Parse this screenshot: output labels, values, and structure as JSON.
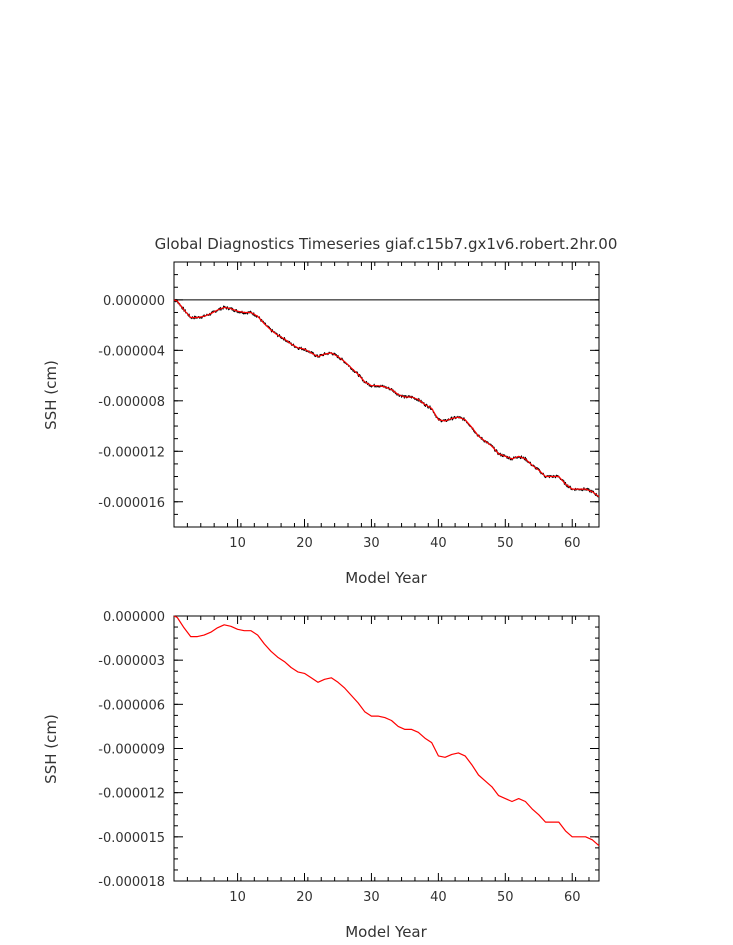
{
  "title": "Global Diagnostics Timeseries giaf.c15b7.gx1v6.robert.2hr.00",
  "colors": {
    "raw": "#000000",
    "smooth": "#ff0000",
    "axis": "#000000",
    "text": "#333333"
  },
  "chart_data": [
    {
      "type": "line",
      "xlabel": "Model Year",
      "ylabel": "SSH (cm)",
      "xlim": [
        0.5,
        64
      ],
      "ylim": [
        -1.8e-05,
        3e-06
      ],
      "x_ticks": [
        10,
        20,
        30,
        40,
        50,
        60
      ],
      "x_tick_labels": [
        "10",
        "20",
        "30",
        "40",
        "50",
        "60"
      ],
      "y_ticks": [
        0.0,
        -4e-06,
        -8e-06,
        -1.2e-05,
        -1.6e-05
      ],
      "y_tick_labels": [
        "0.000000",
        "-0.000004",
        "-0.000008",
        "-0.000012",
        "-0.000016"
      ],
      "reference_line_y": 0.0,
      "grid": false,
      "series": [
        {
          "color": "#000000",
          "noisy": true,
          "x": [
            0.5,
            1,
            2,
            3,
            4,
            5,
            6,
            7,
            8,
            9,
            10,
            11,
            12,
            13,
            14,
            15,
            16,
            17,
            18,
            19,
            20,
            21,
            22,
            23,
            24,
            25,
            26,
            27,
            28,
            29,
            30,
            31,
            32,
            33,
            34,
            35,
            36,
            37,
            38,
            39,
            40,
            41,
            42,
            43,
            44,
            45,
            46,
            47,
            48,
            49,
            50,
            51,
            52,
            53,
            54,
            55,
            56,
            57,
            58,
            59,
            60,
            61,
            62,
            63,
            64
          ],
          "y": [
            0.0,
            -1e-07,
            -8e-07,
            -1.4e-06,
            -1.4e-06,
            -1.3e-06,
            -1.1e-06,
            -8e-07,
            -6e-07,
            -7e-07,
            -9e-07,
            -1e-06,
            -1e-06,
            -1.3e-06,
            -1.9e-06,
            -2.4e-06,
            -2.8e-06,
            -3.1e-06,
            -3.5e-06,
            -3.8e-06,
            -3.9e-06,
            -4.2e-06,
            -4.5e-06,
            -4.3e-06,
            -4.2e-06,
            -4.5e-06,
            -4.9e-06,
            -5.4e-06,
            -5.9e-06,
            -6.5e-06,
            -6.8e-06,
            -6.8e-06,
            -6.9e-06,
            -7.1e-06,
            -7.5e-06,
            -7.7e-06,
            -7.7e-06,
            -7.9e-06,
            -8.3e-06,
            -8.6e-06,
            -9.5e-06,
            -9.6e-06,
            -9.4e-06,
            -9.3e-06,
            -9.5e-06,
            -1.01e-05,
            -1.08e-05,
            -1.12e-05,
            -1.16e-05,
            -1.22e-05,
            -1.24e-05,
            -1.26e-05,
            -1.24e-05,
            -1.26e-05,
            -1.31e-05,
            -1.35e-05,
            -1.4e-05,
            -1.4e-05,
            -1.4e-05,
            -1.46e-05,
            -1.5e-05,
            -1.5e-05,
            -1.5e-05,
            -1.52e-05,
            -1.56e-05
          ]
        },
        {
          "color": "#ff0000",
          "noisy": false,
          "x": [
            0.5,
            1,
            2,
            3,
            4,
            5,
            6,
            7,
            8,
            9,
            10,
            11,
            12,
            13,
            14,
            15,
            16,
            17,
            18,
            19,
            20,
            21,
            22,
            23,
            24,
            25,
            26,
            27,
            28,
            29,
            30,
            31,
            32,
            33,
            34,
            35,
            36,
            37,
            38,
            39,
            40,
            41,
            42,
            43,
            44,
            45,
            46,
            47,
            48,
            49,
            50,
            51,
            52,
            53,
            54,
            55,
            56,
            57,
            58,
            59,
            60,
            61,
            62,
            63,
            64
          ],
          "y": [
            0.0,
            -1e-07,
            -8e-07,
            -1.4e-06,
            -1.4e-06,
            -1.3e-06,
            -1.1e-06,
            -8e-07,
            -6e-07,
            -7e-07,
            -9e-07,
            -1e-06,
            -1e-06,
            -1.3e-06,
            -1.9e-06,
            -2.4e-06,
            -2.8e-06,
            -3.1e-06,
            -3.5e-06,
            -3.8e-06,
            -3.9e-06,
            -4.2e-06,
            -4.5e-06,
            -4.3e-06,
            -4.2e-06,
            -4.5e-06,
            -4.9e-06,
            -5.4e-06,
            -5.9e-06,
            -6.5e-06,
            -6.8e-06,
            -6.8e-06,
            -6.9e-06,
            -7.1e-06,
            -7.5e-06,
            -7.7e-06,
            -7.7e-06,
            -7.9e-06,
            -8.3e-06,
            -8.6e-06,
            -9.5e-06,
            -9.6e-06,
            -9.4e-06,
            -9.3e-06,
            -9.5e-06,
            -1.01e-05,
            -1.08e-05,
            -1.12e-05,
            -1.16e-05,
            -1.22e-05,
            -1.24e-05,
            -1.26e-05,
            -1.24e-05,
            -1.26e-05,
            -1.31e-05,
            -1.35e-05,
            -1.4e-05,
            -1.4e-05,
            -1.4e-05,
            -1.46e-05,
            -1.5e-05,
            -1.5e-05,
            -1.5e-05,
            -1.52e-05,
            -1.56e-05
          ]
        }
      ]
    },
    {
      "type": "line",
      "xlabel": "Model Year",
      "ylabel": "SSH (cm)",
      "xlim": [
        0.5,
        64
      ],
      "ylim": [
        -1.8e-05,
        0.0
      ],
      "x_ticks": [
        10,
        20,
        30,
        40,
        50,
        60
      ],
      "x_tick_labels": [
        "10",
        "20",
        "30",
        "40",
        "50",
        "60"
      ],
      "y_ticks": [
        0.0,
        -3e-06,
        -6e-06,
        -9e-06,
        -1.2e-05,
        -1.5e-05,
        -1.8e-05
      ],
      "y_tick_labels": [
        "0.000000",
        "-0.000003",
        "-0.000006",
        "-0.000009",
        "-0.000012",
        "-0.000015",
        "-0.000018"
      ],
      "grid": false,
      "series": [
        {
          "color": "#ff0000",
          "noisy": false,
          "x": [
            0.5,
            1,
            2,
            3,
            4,
            5,
            6,
            7,
            8,
            9,
            10,
            11,
            12,
            13,
            14,
            15,
            16,
            17,
            18,
            19,
            20,
            21,
            22,
            23,
            24,
            25,
            26,
            27,
            28,
            29,
            30,
            31,
            32,
            33,
            34,
            35,
            36,
            37,
            38,
            39,
            40,
            41,
            42,
            43,
            44,
            45,
            46,
            47,
            48,
            49,
            50,
            51,
            52,
            53,
            54,
            55,
            56,
            57,
            58,
            59,
            60,
            61,
            62,
            63,
            64
          ],
          "y": [
            0.0,
            -1e-07,
            -8e-07,
            -1.4e-06,
            -1.4e-06,
            -1.3e-06,
            -1.1e-06,
            -8e-07,
            -6e-07,
            -7e-07,
            -9e-07,
            -1e-06,
            -1e-06,
            -1.3e-06,
            -1.9e-06,
            -2.4e-06,
            -2.8e-06,
            -3.1e-06,
            -3.5e-06,
            -3.8e-06,
            -3.9e-06,
            -4.2e-06,
            -4.5e-06,
            -4.3e-06,
            -4.2e-06,
            -4.5e-06,
            -4.9e-06,
            -5.4e-06,
            -5.9e-06,
            -6.5e-06,
            -6.8e-06,
            -6.8e-06,
            -6.9e-06,
            -7.1e-06,
            -7.5e-06,
            -7.7e-06,
            -7.7e-06,
            -7.9e-06,
            -8.3e-06,
            -8.6e-06,
            -9.5e-06,
            -9.6e-06,
            -9.4e-06,
            -9.3e-06,
            -9.5e-06,
            -1.01e-05,
            -1.08e-05,
            -1.12e-05,
            -1.16e-05,
            -1.22e-05,
            -1.24e-05,
            -1.26e-05,
            -1.24e-05,
            -1.26e-05,
            -1.31e-05,
            -1.35e-05,
            -1.4e-05,
            -1.4e-05,
            -1.4e-05,
            -1.46e-05,
            -1.5e-05,
            -1.5e-05,
            -1.5e-05,
            -1.52e-05,
            -1.56e-05
          ]
        }
      ]
    }
  ]
}
